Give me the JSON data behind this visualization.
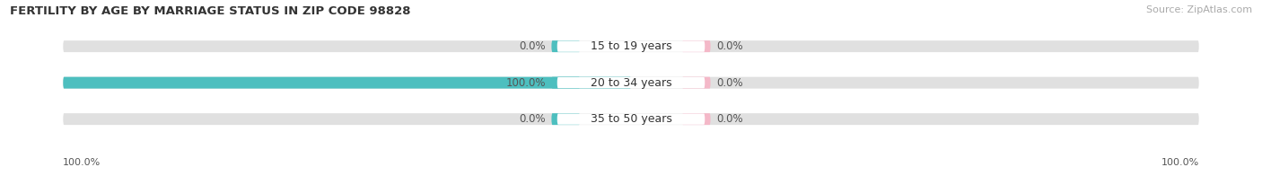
{
  "title": "FERTILITY BY AGE BY MARRIAGE STATUS IN ZIP CODE 98828",
  "source": "Source: ZipAtlas.com",
  "categories": [
    "15 to 19 years",
    "20 to 34 years",
    "35 to 50 years"
  ],
  "married_values": [
    0.0,
    100.0,
    0.0
  ],
  "unmarried_values": [
    0.0,
    0.0,
    0.0
  ],
  "married_color": "#4dbfbf",
  "unmarried_color": "#f4b8c8",
  "bar_bg_color": "#e0e0e0",
  "bar_height": 0.32,
  "title_fontsize": 9.5,
  "source_fontsize": 8,
  "label_fontsize": 8.5,
  "tick_fontsize": 8,
  "cat_label_fontsize": 9,
  "fig_bg_color": "#ffffff",
  "ax_bg_color": "#ffffff",
  "bottom_left_label": "100.0%",
  "bottom_right_label": "100.0%"
}
